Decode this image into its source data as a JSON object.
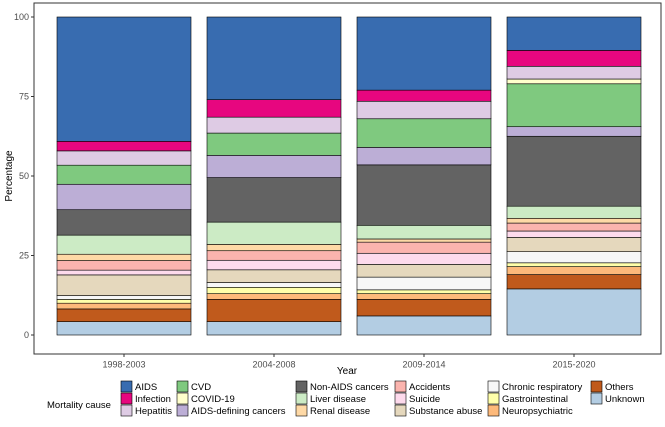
{
  "chart_data": {
    "type": "bar",
    "stacked": true,
    "title": "",
    "xlabel": "Year",
    "ylabel": "Percentage",
    "ylim": [
      0,
      100
    ],
    "yticks": [
      0,
      25,
      50,
      75,
      100
    ],
    "categories": [
      "1998-2003",
      "2004-2008",
      "2009-2014",
      "2015-2020"
    ],
    "legend_title": "Mortality cause",
    "legend_position": "bottom",
    "series": [
      {
        "name": "Unknown",
        "color": "#b3cde3",
        "values": [
          4.2,
          4.2,
          6.0,
          14.5
        ]
      },
      {
        "name": "Others",
        "color": "#c05a1c",
        "values": [
          4.0,
          7.0,
          5.2,
          4.5
        ]
      },
      {
        "name": "Neuropsychiatric",
        "color": "#fdb97a",
        "values": [
          1.8,
          1.8,
          1.8,
          2.5
        ]
      },
      {
        "name": "Gastrointestinal",
        "color": "#ffffaa",
        "values": [
          1.2,
          2.0,
          1.2,
          1.2
        ]
      },
      {
        "name": "Chronic respiratory",
        "color": "#f7f7f7",
        "values": [
          1.2,
          1.5,
          4.0,
          3.5
        ]
      },
      {
        "name": "Substance abuse",
        "color": "#e5d8bd",
        "values": [
          6.5,
          4.0,
          4.0,
          4.5
        ]
      },
      {
        "name": "Suicide",
        "color": "#fddaec",
        "values": [
          1.5,
          3.0,
          3.5,
          2.0
        ]
      },
      {
        "name": "Accidents",
        "color": "#fbb4ae",
        "values": [
          3.0,
          3.0,
          3.5,
          2.5
        ]
      },
      {
        "name": "Renal disease",
        "color": "#fed9a6",
        "values": [
          2.0,
          2.0,
          1.0,
          1.5
        ]
      },
      {
        "name": "Liver disease",
        "color": "#ccebc5",
        "values": [
          6.0,
          7.0,
          4.3,
          3.8
        ]
      },
      {
        "name": "Non-AIDS cancers",
        "color": "#636363",
        "values": [
          8.0,
          14.0,
          19.0,
          22.0
        ]
      },
      {
        "name": "AIDS-defining cancers",
        "color": "#bcaed6",
        "values": [
          8.0,
          7.0,
          5.5,
          3.0
        ]
      },
      {
        "name": "CVD",
        "color": "#7fc97f",
        "values": [
          6.0,
          7.0,
          9.0,
          13.5
        ]
      },
      {
        "name": "COVID-19",
        "color": "#ffffcc",
        "values": [
          0,
          0,
          0,
          1.5
        ]
      },
      {
        "name": "Hepatitis",
        "color": "#decbe4",
        "values": [
          4.5,
          5.0,
          5.5,
          4.0
        ]
      },
      {
        "name": "Infection",
        "color": "#e7067f",
        "values": [
          3.0,
          5.5,
          3.5,
          5.0
        ]
      },
      {
        "name": "AIDS",
        "color": "#386cb0",
        "values": [
          39.1,
          26.0,
          23.0,
          10.5
        ]
      }
    ],
    "legend_order": [
      [
        "AIDS",
        "Infection",
        "Hepatitis"
      ],
      [
        "CVD",
        "COVID-19",
        "AIDS-defining cancers"
      ],
      [
        "Non-AIDS cancers",
        "Liver disease",
        "Renal disease"
      ],
      [
        "Accidents",
        "Suicide",
        "Substance abuse"
      ],
      [
        "Chronic respiratory",
        "Gastrointestinal",
        "Neuropsychiatric"
      ],
      [
        "Others",
        "Unknown"
      ]
    ]
  }
}
